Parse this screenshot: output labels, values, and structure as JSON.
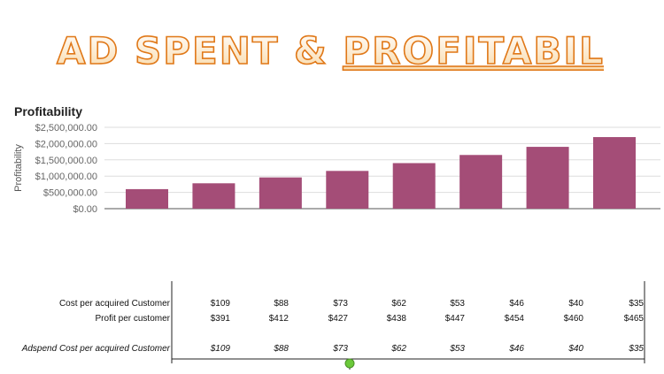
{
  "banner": {
    "title_part1": "AD SPENT & ",
    "title_part2": "PROFITABILITY"
  },
  "chart_data": {
    "type": "bar",
    "title": "Profitability",
    "ylabel": "Profitability",
    "ylim": [
      0,
      2500000
    ],
    "yticks": [
      "$0.00",
      "$500,000.00",
      "$1,000,000.00",
      "$1,500,000.00",
      "$2,000,000.00",
      "$2,500,000.00"
    ],
    "ytick_values": [
      0,
      500000,
      1000000,
      1500000,
      2000000,
      2500000
    ],
    "grid": true,
    "bar_color": "#a44d77",
    "values": [
      600000,
      780000,
      960000,
      1160000,
      1400000,
      1650000,
      1900000,
      2200000
    ]
  },
  "table": {
    "rows": [
      {
        "label": "Cost per acquired Customer",
        "italic": false,
        "values": [
          "$109",
          "$88",
          "$73",
          "$62",
          "$53",
          "$46",
          "$40",
          "$35"
        ]
      },
      {
        "label": "Profit per customer",
        "italic": false,
        "values": [
          "$391",
          "$412",
          "$427",
          "$438",
          "$447",
          "$454",
          "$460",
          "$465"
        ]
      },
      {
        "label": "Adspend Cost per acquired Customer",
        "italic": true,
        "values": [
          "$109",
          "$88",
          "$73",
          "$62",
          "$53",
          "$46",
          "$40",
          "$35"
        ]
      }
    ],
    "marker_color": "#6bc93a"
  }
}
